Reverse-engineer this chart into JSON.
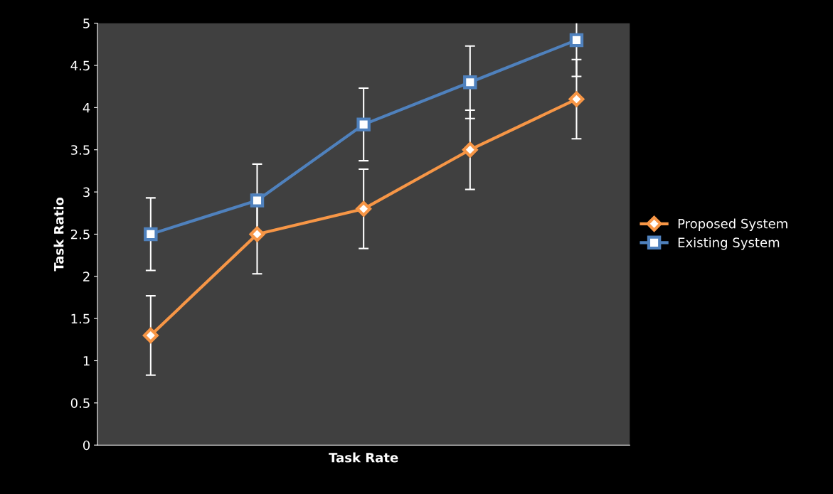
{
  "chart_data": {
    "type": "line",
    "xlabel": "Task Rate",
    "ylabel": "Task Ratio",
    "categories": [
      null,
      null,
      null,
      null,
      null
    ],
    "series": [
      {
        "name": "Proposed System",
        "color": "#f79646",
        "marker": "diamond",
        "values": [
          1.3,
          2.5,
          2.8,
          3.5,
          4.1
        ],
        "errors": [
          0.47,
          0.47,
          0.47,
          0.47,
          0.47
        ]
      },
      {
        "name": "Existing System",
        "color": "#4f81bd",
        "marker": "square",
        "values": [
          2.5,
          2.9,
          3.8,
          4.3,
          4.8
        ],
        "errors": [
          0.43,
          0.43,
          0.43,
          0.43,
          0.43
        ]
      }
    ],
    "ylim": [
      0,
      5
    ],
    "yticks": [
      0,
      0.5,
      1,
      1.5,
      2,
      2.5,
      3,
      3.5,
      4,
      4.5,
      5
    ],
    "grid": false,
    "legend": "right"
  }
}
